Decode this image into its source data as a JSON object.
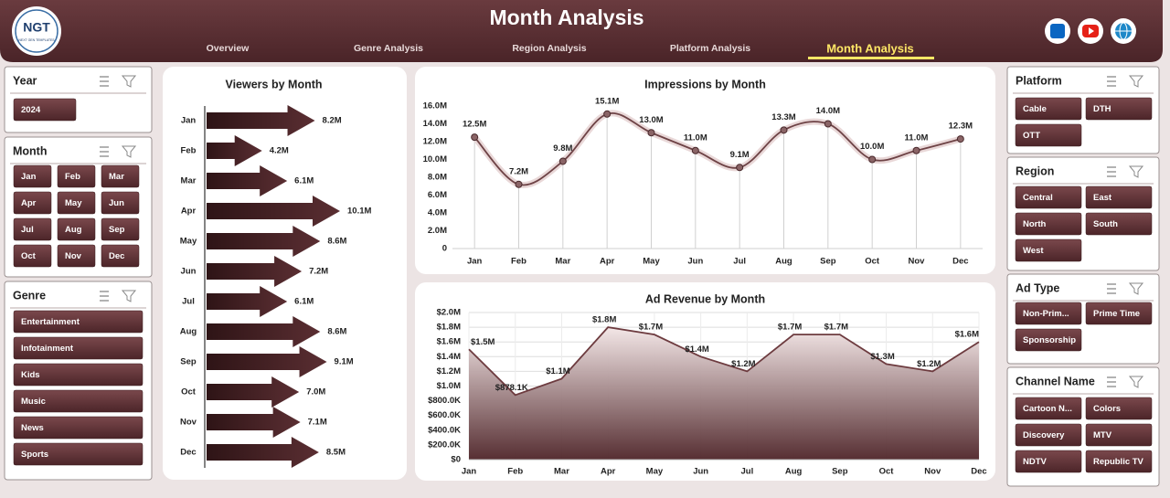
{
  "header": {
    "logo": "NGT",
    "logo_tagline": "NEXT GEN TEMPLATES",
    "title": "Month Analysis"
  },
  "nav": {
    "items": [
      "Overview",
      "Genre Analysis",
      "Region Analysis",
      "Platform Analysis",
      "Month Analysis"
    ],
    "active": 4
  },
  "left_slicers": [
    {
      "title": "Year",
      "items": [
        "2024"
      ]
    },
    {
      "title": "Month",
      "items": [
        "Jan",
        "Feb",
        "Mar",
        "Apr",
        "May",
        "Jun",
        "Jul",
        "Aug",
        "Sep",
        "Oct",
        "Nov",
        "Dec"
      ]
    },
    {
      "title": "Genre",
      "items": [
        "Entertainment",
        "Infotainment",
        "Kids",
        "Music",
        "News",
        "Sports"
      ]
    }
  ],
  "right_slicers": [
    {
      "title": "Platform",
      "items": [
        "Cable",
        "DTH",
        "OTT"
      ]
    },
    {
      "title": "Region",
      "items": [
        "Central",
        "East",
        "North",
        "South",
        "West"
      ]
    },
    {
      "title": "Ad Type",
      "items": [
        "Non-Prim...",
        "Prime Time",
        "Sponsorship"
      ]
    },
    {
      "title": "Channel Name",
      "items": [
        "Cartoon N...",
        "Colors",
        "Discovery",
        "MTV",
        "NDTV",
        "Republic TV"
      ]
    }
  ],
  "chart_data": [
    {
      "type": "arrow-bar",
      "title": "Viewers by Month",
      "categories": [
        "Jan",
        "Feb",
        "Mar",
        "Apr",
        "May",
        "Jun",
        "Jul",
        "Aug",
        "Sep",
        "Oct",
        "Nov",
        "Dec"
      ],
      "values": [
        8200000,
        4200000,
        6100000,
        10100000,
        8600000,
        7200000,
        6100000,
        8600000,
        9100000,
        7000000,
        7100000,
        8500000
      ],
      "value_labels": [
        "8.2M",
        "4.2M",
        "6.1M",
        "10.1M",
        "8.6M",
        "7.2M",
        "6.1M",
        "8.6M",
        "9.1M",
        "7.0M",
        "7.1M",
        "8.5M"
      ],
      "color": "#4a2226"
    },
    {
      "type": "line",
      "title": "Impressions by Month",
      "categories": [
        "Jan",
        "Feb",
        "Mar",
        "Apr",
        "May",
        "Jun",
        "Jul",
        "Aug",
        "Sep",
        "Oct",
        "Nov",
        "Dec"
      ],
      "values": [
        12500000,
        7200000,
        9800000,
        15100000,
        13000000,
        11000000,
        9100000,
        13300000,
        14000000,
        10000000,
        11000000,
        12300000
      ],
      "value_labels": [
        "12.5M",
        "7.2M",
        "9.8M",
        "15.1M",
        "13.0M",
        "11.0M",
        "9.1M",
        "13.3M",
        "14.0M",
        "10.0M",
        "11.0M",
        "12.3M"
      ],
      "ylim": [
        0,
        16000000
      ],
      "yticks": [
        0,
        {
          "value": 2000000,
          "label": "2.0M"
        },
        {
          "value": 4000000,
          "label": "4.0M"
        },
        {
          "value": 6000000,
          "label": "6.0M"
        },
        {
          "value": 8000000,
          "label": "8.0M"
        },
        {
          "value": 10000000,
          "label": "10.0M"
        },
        {
          "value": 12000000,
          "label": "12.0M"
        },
        {
          "value": 14000000,
          "label": "14.0M"
        },
        {
          "value": 16000000,
          "label": "16.0M"
        }
      ],
      "color": "#6e4346",
      "drop_lines": true
    },
    {
      "type": "area",
      "title": "Ad Revenue by Month",
      "categories": [
        "Jan",
        "Feb",
        "Mar",
        "Apr",
        "May",
        "Jun",
        "Jul",
        "Aug",
        "Sep",
        "Oct",
        "Nov",
        "Dec"
      ],
      "values": [
        1500000,
        878100,
        1100000,
        1800000,
        1700000,
        1400000,
        1200000,
        1700000,
        1700000,
        1300000,
        1200000,
        1600000
      ],
      "value_labels": [
        "$1.5M",
        "$878.1K",
        "$1.1M",
        "$1.8M",
        "$1.7M",
        "$1.4M",
        "$1.2M",
        "$1.7M",
        "$1.7M",
        "$1.3M",
        "$1.2M",
        "$1.6M"
      ],
      "ylim": [
        0,
        2000000
      ],
      "yticks": [
        {
          "value": 0,
          "label": "$0"
        },
        {
          "value": 200000,
          "label": "$200.0K"
        },
        {
          "value": 400000,
          "label": "$400.0K"
        },
        {
          "value": 600000,
          "label": "$600.0K"
        },
        {
          "value": 800000,
          "label": "$800.0K"
        },
        {
          "value": 1000000,
          "label": "$1.0M"
        },
        {
          "value": 1200000,
          "label": "$1.2M"
        },
        {
          "value": 1400000,
          "label": "$1.4M"
        },
        {
          "value": 1600000,
          "label": "$1.6M"
        },
        {
          "value": 1800000,
          "label": "$1.8M"
        },
        {
          "value": 2000000,
          "label": "$2.0M"
        }
      ],
      "color": "#6d3b3f",
      "grid": true
    }
  ]
}
